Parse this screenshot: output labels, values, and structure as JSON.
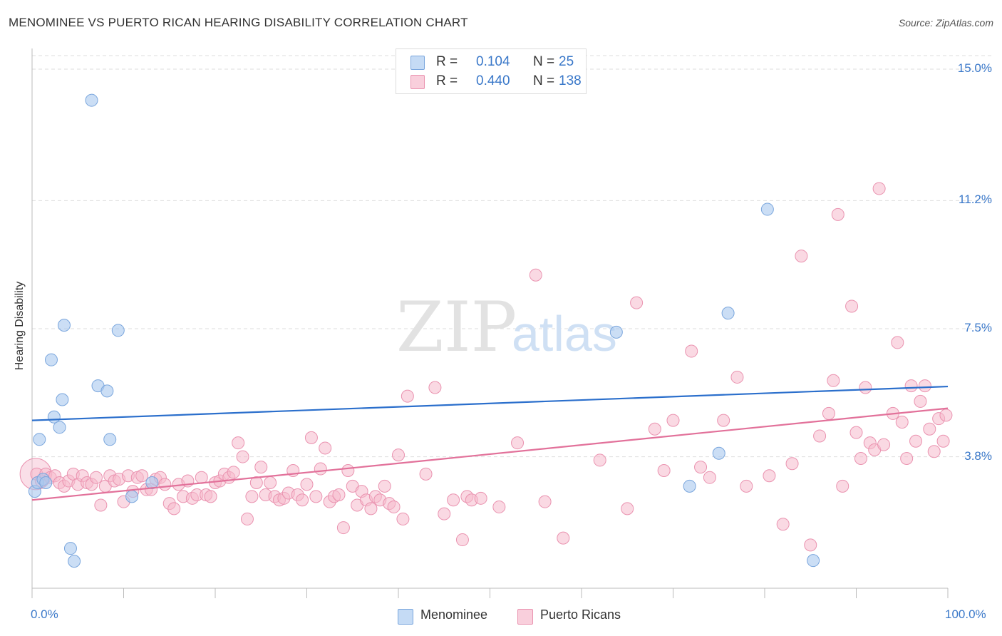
{
  "title": "MENOMINEE VS PUERTO RICAN HEARING DISABILITY CORRELATION CHART",
  "source": "Source: ZipAtlas.com",
  "watermark": {
    "zip": "ZIP",
    "atlas": "atlas"
  },
  "colors": {
    "blue_fill": "#a9c8ef",
    "blue_stroke": "#7aa6dd",
    "blue_line": "#2b6fcc",
    "pink_fill": "#f5b9cc",
    "pink_stroke": "#ea93b0",
    "pink_line": "#e2719a",
    "grid": "#dddddd",
    "tick_label": "#3a78c9"
  },
  "legend": {
    "rows": [
      {
        "r_label": "R =",
        "r_value": "0.104",
        "n_label": "N =",
        "n_value": "25"
      },
      {
        "r_label": "R =",
        "r_value": "0.440",
        "n_label": "N =",
        "n_value": "138"
      }
    ]
  },
  "bottom_legend": {
    "series1": "Menominee",
    "series2": "Puerto Ricans"
  },
  "chart_data": {
    "type": "scatter",
    "title": "MENOMINEE VS PUERTO RICAN HEARING DISABILITY CORRELATION CHART",
    "xlabel": "",
    "ylabel": "Hearing Disability",
    "xlim": [
      0,
      100
    ],
    "ylim": [
      0,
      15.0
    ],
    "y_ticks": [
      3.8,
      7.5,
      11.2,
      15.0
    ],
    "y_tick_labels": [
      "3.8%",
      "7.5%",
      "11.2%",
      "15.0%"
    ],
    "x_tick_labels": [
      "0.0%",
      "100.0%"
    ],
    "grid": true,
    "legend_position": "top-center",
    "series": [
      {
        "name": "Menominee",
        "color": "#a9c8ef",
        "stats": {
          "R": 0.104,
          "N": 25
        },
        "trend": {
          "x": [
            0,
            100
          ],
          "y": [
            4.85,
            5.83
          ]
        },
        "points": [
          [
            0.3,
            2.8
          ],
          [
            0.6,
            3.05
          ],
          [
            0.8,
            4.3
          ],
          [
            1.2,
            3.15
          ],
          [
            1.5,
            3.05
          ],
          [
            2.1,
            6.6
          ],
          [
            2.4,
            4.95
          ],
          [
            3.0,
            4.65
          ],
          [
            3.3,
            5.45
          ],
          [
            3.5,
            7.6
          ],
          [
            4.2,
            1.15
          ],
          [
            4.6,
            0.78
          ],
          [
            6.5,
            14.1
          ],
          [
            7.2,
            5.85
          ],
          [
            8.2,
            5.7
          ],
          [
            8.5,
            4.3
          ],
          [
            9.4,
            7.45
          ],
          [
            10.9,
            2.65
          ],
          [
            13.1,
            3.05
          ],
          [
            63.8,
            7.4
          ],
          [
            71.8,
            2.95
          ],
          [
            75.0,
            3.9
          ],
          [
            76.0,
            7.95
          ],
          [
            80.3,
            10.95
          ],
          [
            85.3,
            0.8
          ]
        ]
      },
      {
        "name": "Puerto Ricans",
        "color": "#f5b9cc",
        "stats": {
          "R": 0.44,
          "N": 138
        },
        "trend": {
          "x": [
            0,
            100
          ],
          "y": [
            2.55,
            5.2
          ]
        },
        "points": [
          [
            0.5,
            3.3
          ],
          [
            1.0,
            3.1
          ],
          [
            1.5,
            3.3
          ],
          [
            2.0,
            3.2
          ],
          [
            2.5,
            3.25
          ],
          [
            3.0,
            3.05
          ],
          [
            3.5,
            2.95
          ],
          [
            4.0,
            3.1
          ],
          [
            4.5,
            3.3
          ],
          [
            5.0,
            3.0
          ],
          [
            5.5,
            3.25
          ],
          [
            6.0,
            3.05
          ],
          [
            6.5,
            3.0
          ],
          [
            7.0,
            3.2
          ],
          [
            7.5,
            2.4
          ],
          [
            8.0,
            2.95
          ],
          [
            8.5,
            3.25
          ],
          [
            9.0,
            3.1
          ],
          [
            9.5,
            3.15
          ],
          [
            10.0,
            2.5
          ],
          [
            10.5,
            3.25
          ],
          [
            11.0,
            2.8
          ],
          [
            11.5,
            3.2
          ],
          [
            12.0,
            3.25
          ],
          [
            12.5,
            2.85
          ],
          [
            13.0,
            2.85
          ],
          [
            13.5,
            3.15
          ],
          [
            14.0,
            3.2
          ],
          [
            14.5,
            3.0
          ],
          [
            15.0,
            2.45
          ],
          [
            15.5,
            2.3
          ],
          [
            16.0,
            3.0
          ],
          [
            16.5,
            2.65
          ],
          [
            17.0,
            3.1
          ],
          [
            17.5,
            2.6
          ],
          [
            18.0,
            2.7
          ],
          [
            18.5,
            3.2
          ],
          [
            19.0,
            2.7
          ],
          [
            19.5,
            2.65
          ],
          [
            20.0,
            3.05
          ],
          [
            20.5,
            3.1
          ],
          [
            21.0,
            3.3
          ],
          [
            21.5,
            3.2
          ],
          [
            22.0,
            3.35
          ],
          [
            22.5,
            4.2
          ],
          [
            23.0,
            3.8
          ],
          [
            23.5,
            2.0
          ],
          [
            24.0,
            2.65
          ],
          [
            24.5,
            3.05
          ],
          [
            25.0,
            3.5
          ],
          [
            25.5,
            2.7
          ],
          [
            26.0,
            3.05
          ],
          [
            26.5,
            2.65
          ],
          [
            27.0,
            2.55
          ],
          [
            27.5,
            2.6
          ],
          [
            28.0,
            2.75
          ],
          [
            28.5,
            3.4
          ],
          [
            29.0,
            2.7
          ],
          [
            29.5,
            2.55
          ],
          [
            30.0,
            3.0
          ],
          [
            30.5,
            4.35
          ],
          [
            31.0,
            2.65
          ],
          [
            31.5,
            3.45
          ],
          [
            32.0,
            4.05
          ],
          [
            32.5,
            2.5
          ],
          [
            33.0,
            2.65
          ],
          [
            33.5,
            2.7
          ],
          [
            34.0,
            1.75
          ],
          [
            34.5,
            3.4
          ],
          [
            35.0,
            2.95
          ],
          [
            35.5,
            2.4
          ],
          [
            36.0,
            2.8
          ],
          [
            36.5,
            2.55
          ],
          [
            37.0,
            2.3
          ],
          [
            37.5,
            2.65
          ],
          [
            38.0,
            2.55
          ],
          [
            38.5,
            2.95
          ],
          [
            39.0,
            2.45
          ],
          [
            39.5,
            2.35
          ],
          [
            40.0,
            3.85
          ],
          [
            40.5,
            2.0
          ],
          [
            41.0,
            5.55
          ],
          [
            43.0,
            3.3
          ],
          [
            45.0,
            2.15
          ],
          [
            44.0,
            5.8
          ],
          [
            46.0,
            2.55
          ],
          [
            47.0,
            1.4
          ],
          [
            47.5,
            2.65
          ],
          [
            48.0,
            2.55
          ],
          [
            49.0,
            2.6
          ],
          [
            51.0,
            2.35
          ],
          [
            53.0,
            4.2
          ],
          [
            55.0,
            9.05
          ],
          [
            56.0,
            2.5
          ],
          [
            58.0,
            1.45
          ],
          [
            62.0,
            3.7
          ],
          [
            65.0,
            2.3
          ],
          [
            66.0,
            8.25
          ],
          [
            68.0,
            4.6
          ],
          [
            69.0,
            3.4
          ],
          [
            70.0,
            4.85
          ],
          [
            72.0,
            6.85
          ],
          [
            73.0,
            3.5
          ],
          [
            74.0,
            3.2
          ],
          [
            75.5,
            4.85
          ],
          [
            77.0,
            6.1
          ],
          [
            78.0,
            2.95
          ],
          [
            80.5,
            3.25
          ],
          [
            82.0,
            1.85
          ],
          [
            83.0,
            3.6
          ],
          [
            84.0,
            9.6
          ],
          [
            85.0,
            1.25
          ],
          [
            86.0,
            4.4
          ],
          [
            87.0,
            5.05
          ],
          [
            87.5,
            6.0
          ],
          [
            88.0,
            10.8
          ],
          [
            88.5,
            2.95
          ],
          [
            89.5,
            8.15
          ],
          [
            90.0,
            4.5
          ],
          [
            90.5,
            3.75
          ],
          [
            91.0,
            5.8
          ],
          [
            91.5,
            4.2
          ],
          [
            92.0,
            4.0
          ],
          [
            92.5,
            11.55
          ],
          [
            93.0,
            4.15
          ],
          [
            94.0,
            5.05
          ],
          [
            94.5,
            7.1
          ],
          [
            95.0,
            4.8
          ],
          [
            95.5,
            3.75
          ],
          [
            96.0,
            5.85
          ],
          [
            96.5,
            4.25
          ],
          [
            97.0,
            5.4
          ],
          [
            97.5,
            5.85
          ],
          [
            98.0,
            4.6
          ],
          [
            98.5,
            3.95
          ],
          [
            99.0,
            4.9
          ],
          [
            99.5,
            4.25
          ],
          [
            99.8,
            5.0
          ]
        ]
      }
    ]
  }
}
